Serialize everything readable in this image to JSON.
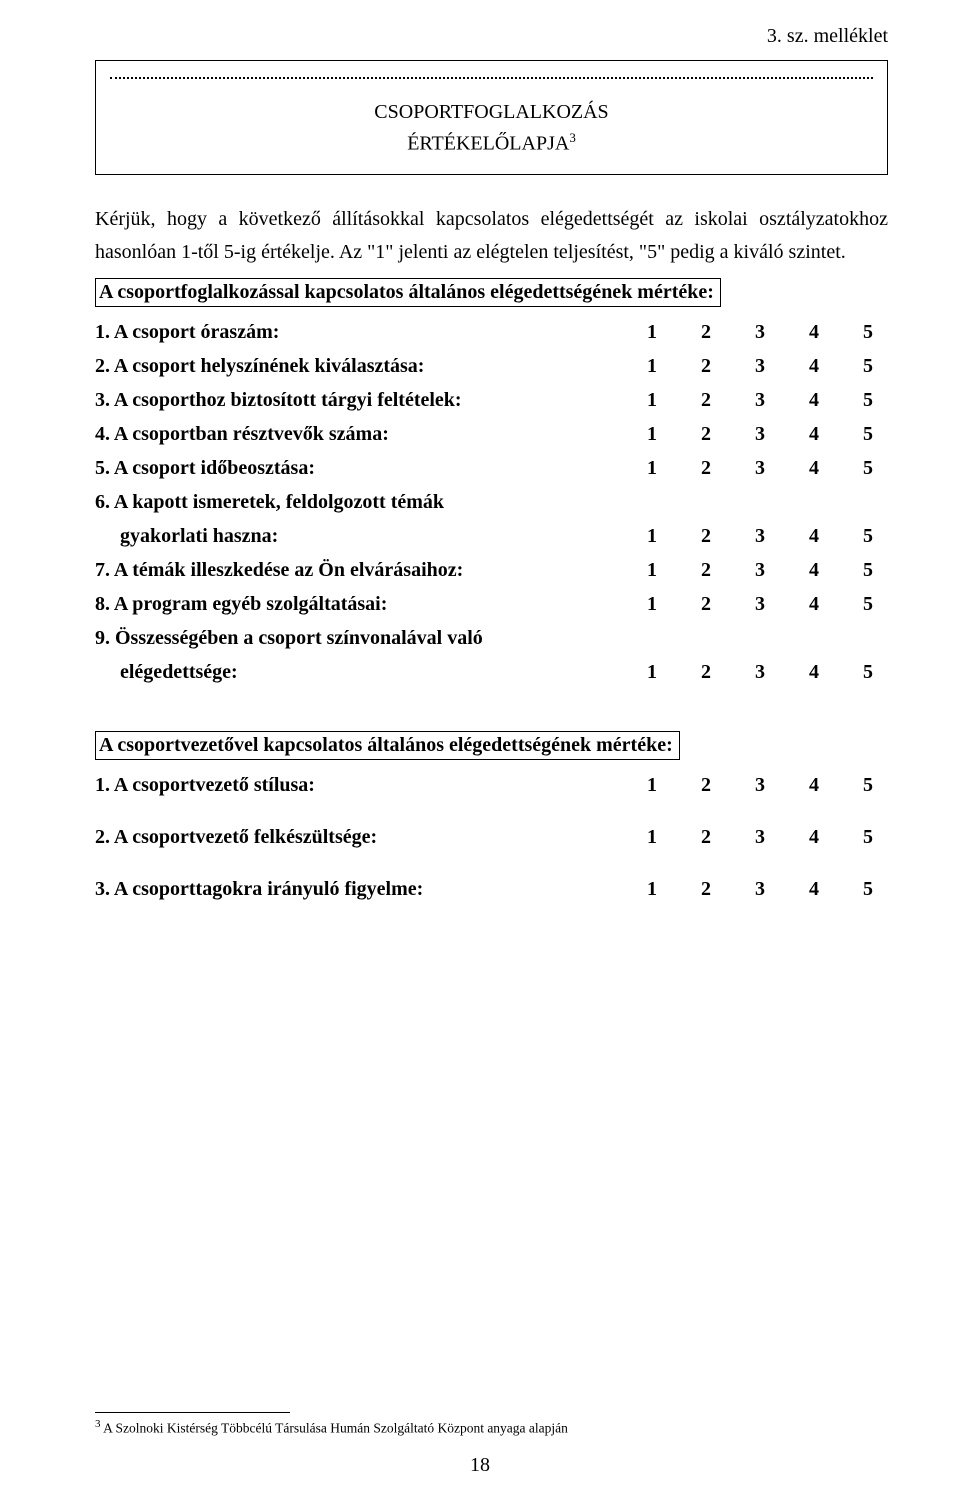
{
  "appendix_label": "3. sz. melléklet",
  "title_line1": "CSOPORTFOGLALKOZÁS",
  "title_line2": "ÉRTÉKELŐLAPJA",
  "title_superscript": "3",
  "intro_paragraph": "Kérjük, hogy a következő állításokkal kapcsolatos elégedettségét az iskolai osztályzatokhoz hasonlóan 1-től 5-ig értékelje. Az \"1\" jelenti az elégtelen teljesítést, \"5\" pedig a kiváló szintet.",
  "section1_heading": "A csoportfoglalkozással kapcsolatos általános elégedettségének mértéke:",
  "rating_scale": [
    "1",
    "2",
    "3",
    "4",
    "5"
  ],
  "section1_items": [
    {
      "label": "1.  A csoport óraszám:"
    },
    {
      "label": "2.  A csoport helyszínének kiválasztása:"
    },
    {
      "label": "3.  A csoporthoz biztosított tárgyi feltételek:"
    },
    {
      "label": "4.  A csoportban résztvevők száma:"
    },
    {
      "label": "5.  A csoport időbeosztása:"
    },
    {
      "label": "6.  A kapott ismeretek, feldolgozott témák",
      "cont": "gyakorlati haszna:"
    },
    {
      "label": "7.  A témák illeszkedése az Ön elvárásaihoz:"
    },
    {
      "label": "8.  A program egyéb szolgáltatásai:"
    },
    {
      "label": "9.  Összességében a csoport színvonalával való",
      "cont": "elégedettsége:"
    }
  ],
  "section2_heading": "A csoportvezetővel kapcsolatos általános elégedettségének mértéke:",
  "section2_items": [
    {
      "label": "1. A csoportvezető stílusa:"
    },
    {
      "label": "2. A csoportvezető felkészültsége:"
    },
    {
      "label": "3. A csoporttagokra irányuló figyelme:"
    }
  ],
  "footnote_marker": "3",
  "footnote_text": " A Szolnoki Kistérség Többcélú Társulása Humán Szolgáltató Központ anyaga alapján",
  "page_number": "18"
}
